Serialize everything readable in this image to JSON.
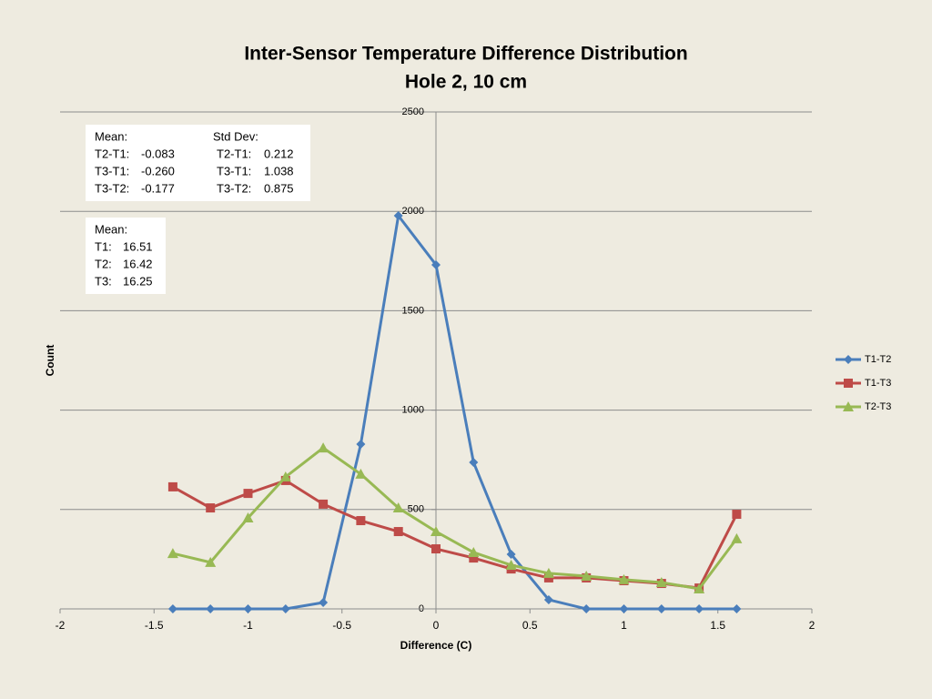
{
  "chart_data": {
    "type": "line",
    "title": "Inter-Sensor Temperature Difference Distribution",
    "subtitle": "Hole 2, 10 cm",
    "xlabel": "Difference (C)",
    "ylabel": "Count",
    "x": [
      -1.4,
      -1.2,
      -1,
      -0.8,
      -0.6,
      -0.4,
      -0.2,
      0,
      0.2,
      0.4,
      0.6,
      0.8,
      1,
      1.2,
      1.4,
      1.6
    ],
    "series": [
      {
        "name": "T1-T2",
        "color": "#4a7ebb",
        "marker": "diamond",
        "values": [
          0,
          0,
          0,
          0,
          32,
          829,
          1978,
          1731,
          737,
          275,
          46,
          0,
          0,
          0,
          0,
          0
        ]
      },
      {
        "name": "T1-T3",
        "color": "#be4b48",
        "marker": "square",
        "values": [
          614,
          508,
          581,
          646,
          527,
          444,
          389,
          302,
          256,
          201,
          156,
          156,
          142,
          128,
          105,
          476
        ]
      },
      {
        "name": "T2-T3",
        "color": "#98b954",
        "marker": "triangle",
        "values": [
          279,
          234,
          458,
          664,
          810,
          678,
          508,
          389,
          284,
          220,
          179,
          165,
          147,
          133,
          101,
          353
        ]
      }
    ],
    "xlim": [
      -2,
      2
    ],
    "xticks": [
      -2,
      -1.5,
      -1,
      -0.5,
      0,
      0.5,
      1,
      1.5,
      2
    ],
    "ylim": [
      0,
      2500
    ],
    "yticks": [
      0,
      500,
      1000,
      1500,
      2000,
      2500
    ],
    "grid": true,
    "legend": "right",
    "annotations": [
      {
        "title": "Mean:",
        "rows": [
          [
            "T2-T1:",
            "-0.083"
          ],
          [
            "T3-T1:",
            "-0.260"
          ],
          [
            "T3-T2:",
            "-0.177"
          ]
        ]
      },
      {
        "title": "Std Dev:",
        "rows": [
          [
            "T2-T1:",
            "0.212"
          ],
          [
            "T3-T1:",
            "1.038"
          ],
          [
            "T3-T2:",
            "0.875"
          ]
        ]
      },
      {
        "title": "Mean:",
        "rows": [
          [
            "T1:",
            "16.51"
          ],
          [
            "T2:",
            "16.42"
          ],
          [
            "T3:",
            "16.25"
          ]
        ]
      }
    ]
  }
}
